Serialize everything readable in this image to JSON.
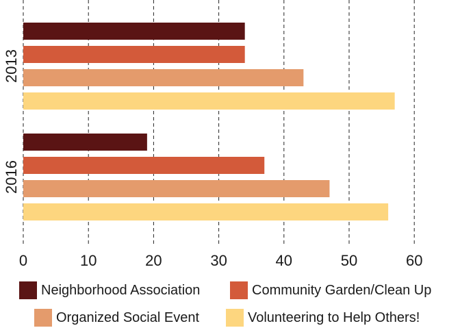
{
  "chart_data": {
    "type": "bar",
    "orientation": "horizontal",
    "groups": [
      "2013",
      "2016"
    ],
    "series": [
      {
        "name": "Neighborhood Association",
        "color": "#5a1414",
        "values": [
          34,
          19
        ]
      },
      {
        "name": "Community Garden/Clean Up",
        "color": "#d35a3a",
        "values": [
          34,
          37
        ]
      },
      {
        "name": "Organized Social Event",
        "color": "#e49b6c",
        "values": [
          43,
          47
        ]
      },
      {
        "name": "Volunteering to Help Others!",
        "color": "#fdd67f",
        "values": [
          57,
          56
        ]
      }
    ],
    "xticks": [
      "0",
      "10",
      "20",
      "30",
      "40",
      "50",
      "60"
    ],
    "xlim": [
      0,
      60
    ],
    "grid": "vertical dashed",
    "legend_position": "bottom"
  }
}
